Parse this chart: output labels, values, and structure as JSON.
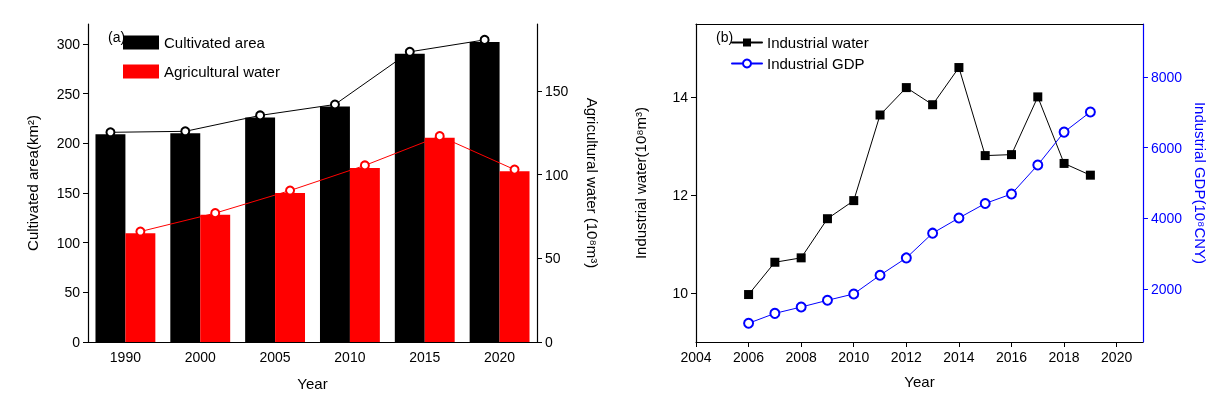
{
  "chart_data": [
    {
      "type": "bar",
      "categories": [
        "1990",
        "2000",
        "2005",
        "2010",
        "2015",
        "2020"
      ],
      "xlabel": "Year",
      "ylabel": "Cultivated area(km²)",
      "y2label": "Agricultural water (10⁸m³)",
      "ylim": [
        0,
        320
      ],
      "yticks": [
        0,
        50,
        100,
        150,
        200,
        250,
        300
      ],
      "y2lim": [
        0,
        190
      ],
      "y2ticks": [
        0,
        50,
        100,
        150
      ],
      "grid": false,
      "legend": "top left",
      "marker": "circle",
      "annotations": [
        "(a)"
      ],
      "series": [
        {
          "name": "Cultivated area",
          "color": "#000000",
          "values": [
            209,
            210,
            226,
            237,
            290,
            302
          ]
        },
        {
          "name": "Agricultural water",
          "color": "#ff0000",
          "axis": "y2",
          "values": [
            65,
            76,
            89,
            104,
            122,
            102
          ]
        },
        {
          "type": "line",
          "color": "#000000",
          "values": [
            211,
            212,
            228,
            239,
            292,
            304
          ]
        },
        {
          "type": "line",
          "color": "#ff0000",
          "axis": "y2",
          "values": [
            66,
            77,
            90.5,
            105.5,
            123,
            103
          ]
        }
      ]
    },
    {
      "type": "line",
      "x": [
        2006,
        2007,
        2008,
        2009,
        2010,
        2011,
        2012,
        2013,
        2014,
        2015,
        2016,
        2017,
        2018,
        2019
      ],
      "xlabel": "Year",
      "ylabel": "Industrial water(10⁸m³)",
      "y2label": "Industrial GDP(10⁸CNY)",
      "xlim": [
        2004,
        2021
      ],
      "xticks": [
        2004,
        2006,
        2008,
        2010,
        2012,
        2014,
        2016,
        2018,
        2020
      ],
      "ylim": [
        9,
        15.5
      ],
      "yticks": [
        10,
        12,
        14
      ],
      "y2lim": [
        500,
        9500
      ],
      "y2ticks": [
        2000,
        4000,
        6000,
        8000
      ],
      "grid": false,
      "legend": "top left",
      "annotations": [
        "(b)"
      ],
      "series": [
        {
          "name": "Industrial water",
          "color": "#000000",
          "marker": "square",
          "values": [
            9.97,
            10.63,
            10.72,
            11.52,
            11.89,
            13.64,
            14.2,
            13.85,
            14.61,
            12.81,
            12.83,
            14.01,
            12.65,
            12.41
          ]
        },
        {
          "name": "Industrial GDP",
          "color": "#0000ff",
          "marker": "circle",
          "axis": "y2",
          "values": [
            1030,
            1310,
            1490,
            1680,
            1860,
            2390,
            2880,
            3580,
            4010,
            4420,
            4690,
            5510,
            6440,
            7010
          ]
        }
      ]
    }
  ]
}
